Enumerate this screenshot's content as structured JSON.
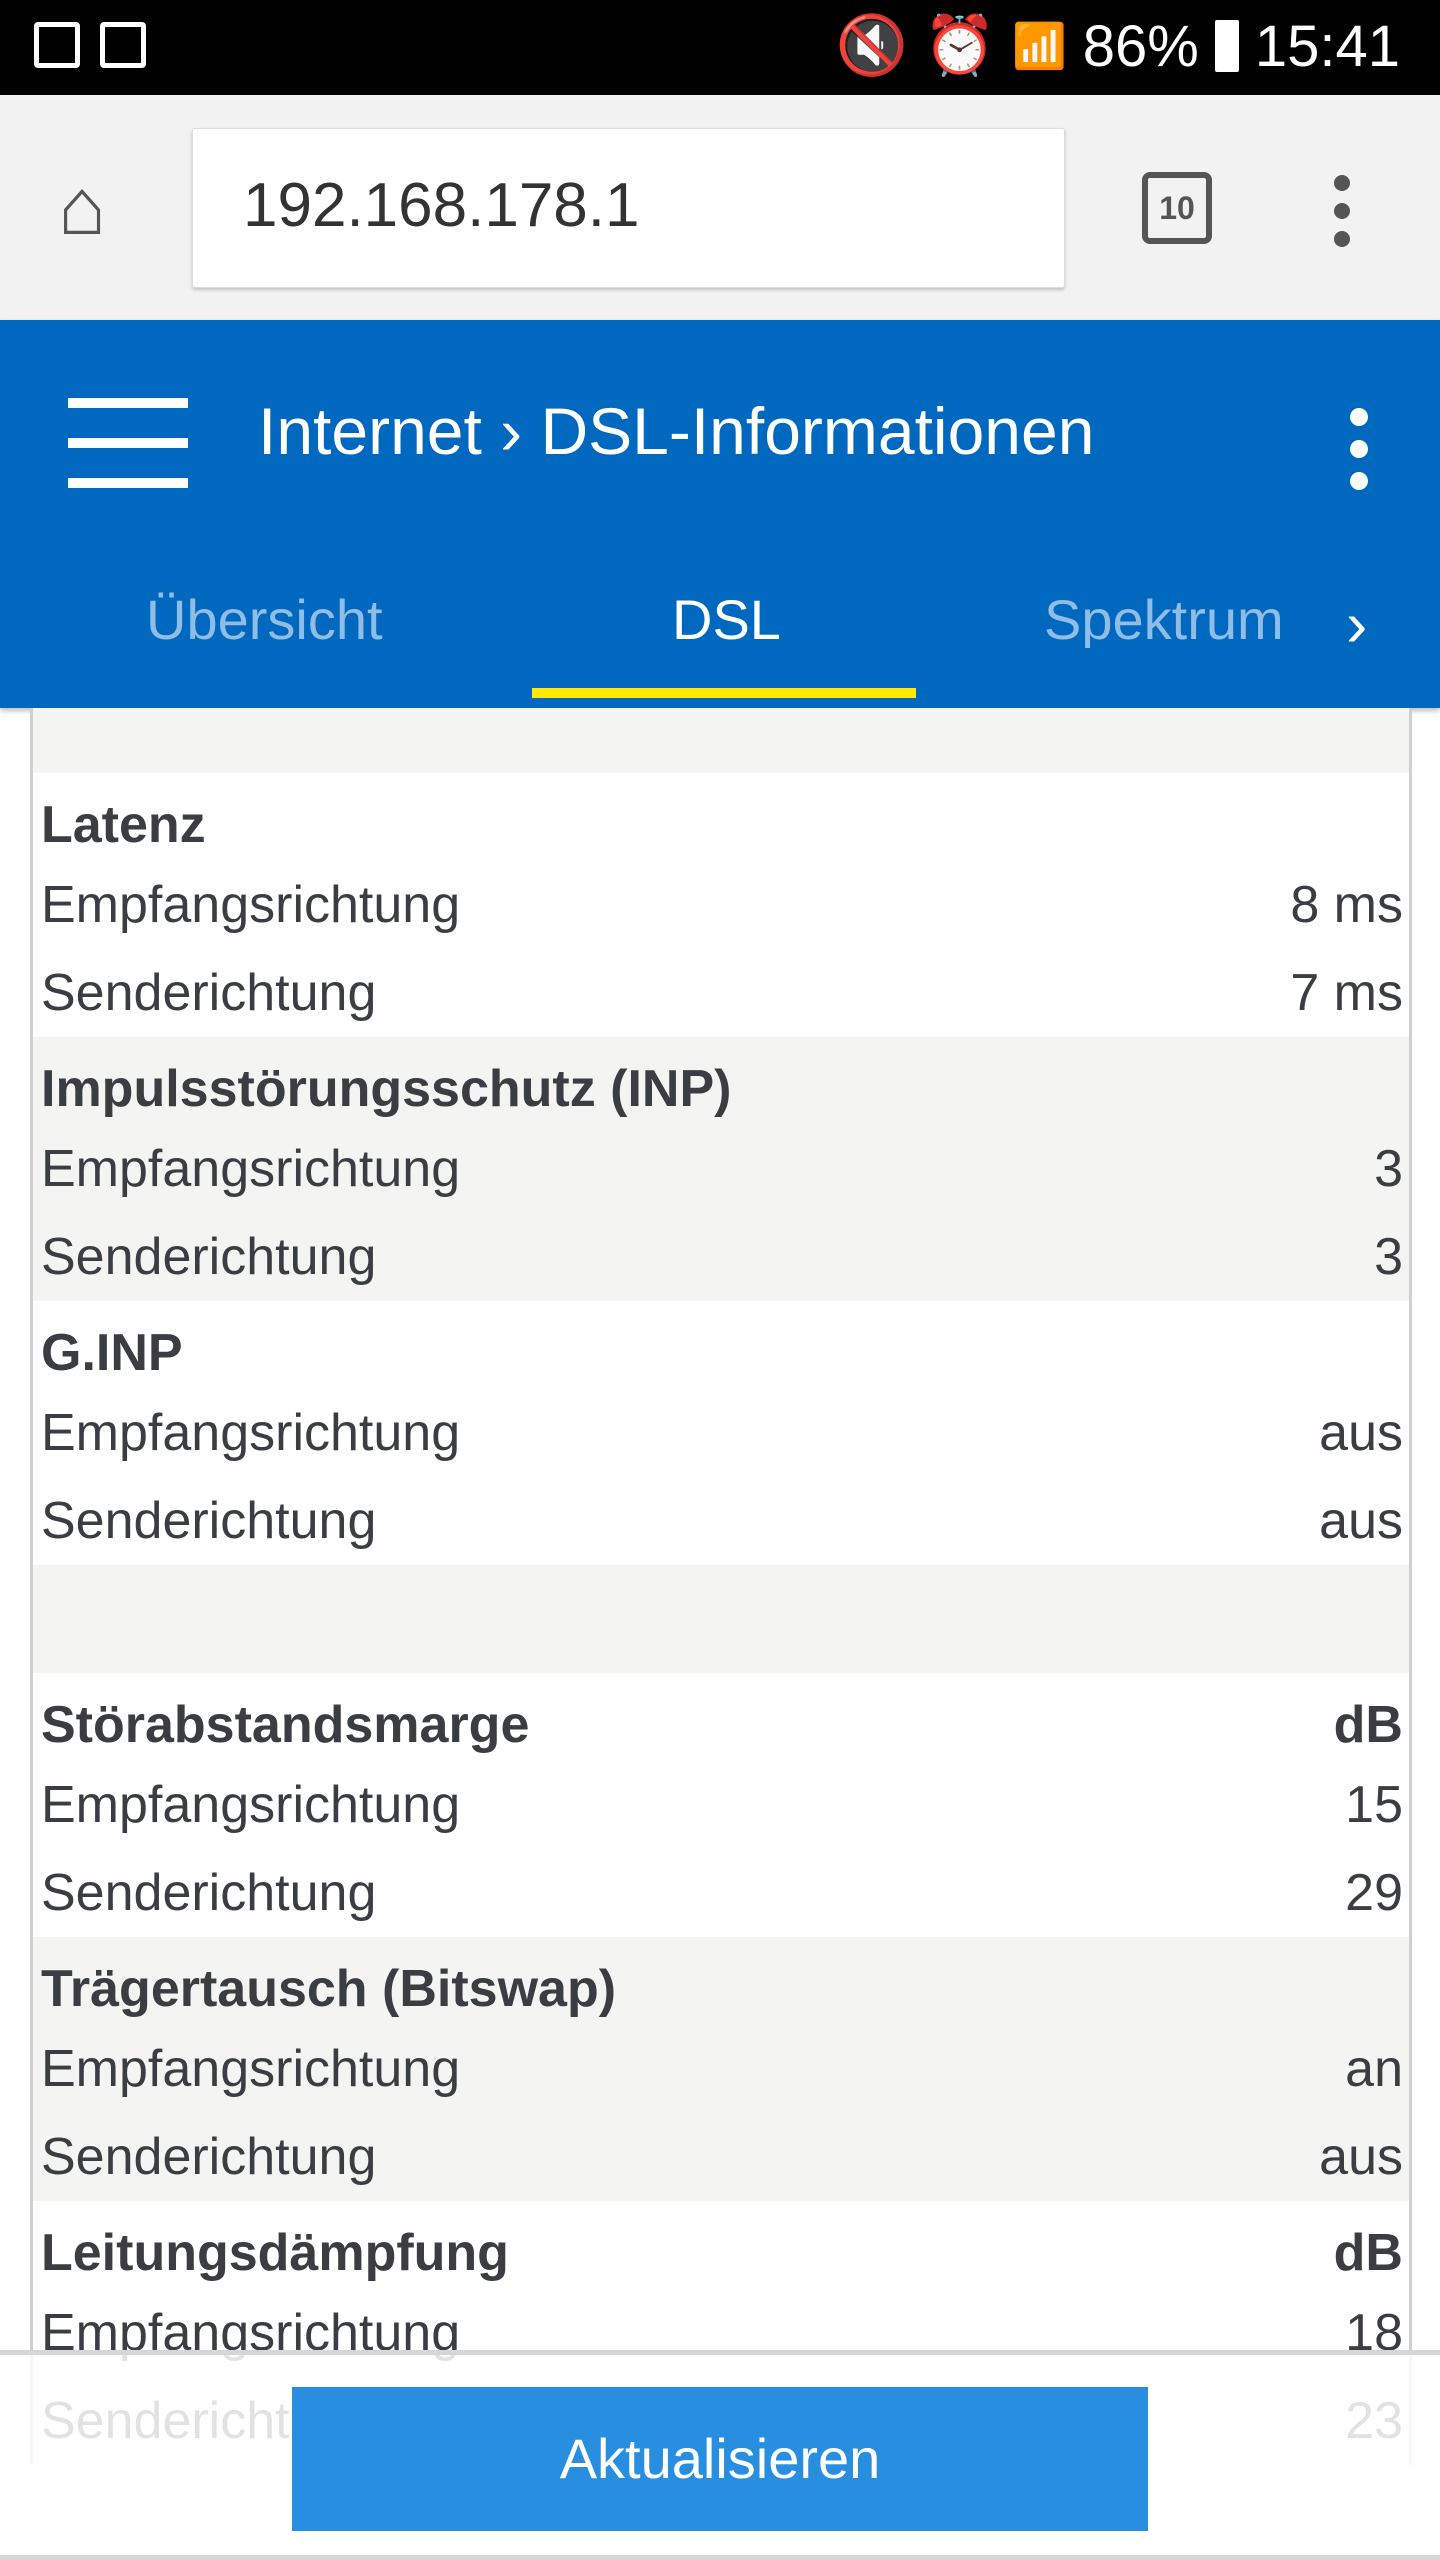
{
  "status_bar": {
    "battery": "86%",
    "time": "15:41",
    "icons": [
      "gallery-icon",
      "task-icon",
      "mute-vibrate-icon",
      "alarm-icon",
      "wifi-icon",
      "signal-icon",
      "battery-icon"
    ]
  },
  "browser": {
    "url": "192.168.178.1",
    "tab_count": "10"
  },
  "appbar": {
    "title": "Internet › DSL-Informationen",
    "tabs": [
      {
        "label": "Übersicht"
      },
      {
        "label": "DSL"
      },
      {
        "label": "Spektrum"
      }
    ],
    "active_tab": "DSL"
  },
  "sections": [
    {
      "title": "Latenz",
      "unit": "",
      "rows": [
        {
          "label": "Empfangsrichtung",
          "value": "8 ms"
        },
        {
          "label": "Senderichtung",
          "value": "7 ms"
        }
      ]
    },
    {
      "title": "Impulsstörungsschutz (INP)",
      "unit": "",
      "rows": [
        {
          "label": "Empfangsrichtung",
          "value": "3"
        },
        {
          "label": "Senderichtung",
          "value": "3"
        }
      ]
    },
    {
      "title": "G.INP",
      "unit": "",
      "rows": [
        {
          "label": "Empfangsrichtung",
          "value": "aus"
        },
        {
          "label": "Senderichtung",
          "value": "aus"
        }
      ]
    },
    {
      "title": "Störabstandsmarge",
      "unit": "dB",
      "rows": [
        {
          "label": "Empfangsrichtung",
          "value": "15"
        },
        {
          "label": "Senderichtung",
          "value": "29"
        }
      ]
    },
    {
      "title": "Trägertausch (Bitswap)",
      "unit": "",
      "rows": [
        {
          "label": "Empfangsrichtung",
          "value": "an"
        },
        {
          "label": "Senderichtung",
          "value": "aus"
        }
      ]
    },
    {
      "title": "Leitungsdämpfung",
      "unit": "dB",
      "rows": [
        {
          "label": "Empfangsrichtung",
          "value": "18"
        },
        {
          "label": "Senderichtung",
          "value": "23"
        }
      ]
    }
  ],
  "footer": {
    "refresh_label": "Aktualisieren"
  },
  "colors": {
    "appbar": "#0068bf",
    "tab_indicator": "#ffea00",
    "button": "#288ee0"
  }
}
